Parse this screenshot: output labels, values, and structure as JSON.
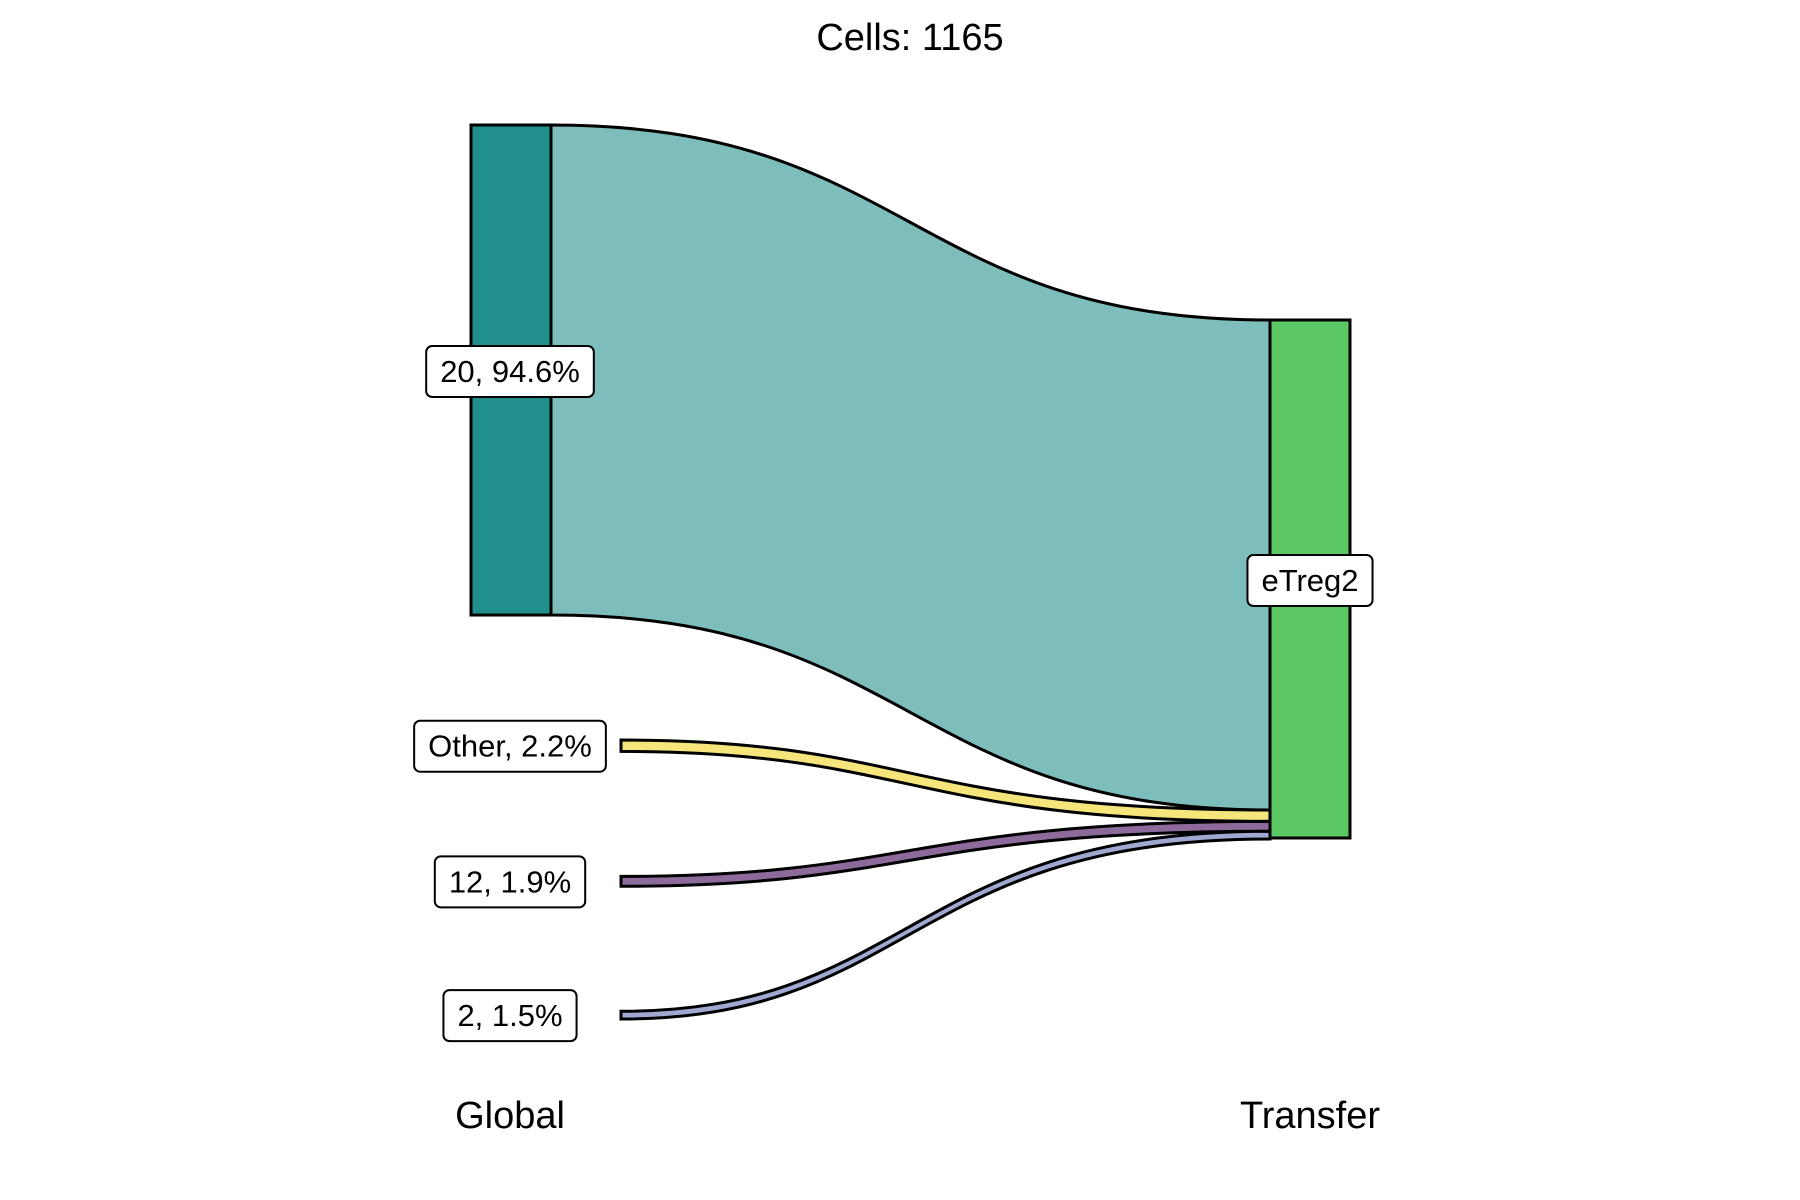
{
  "chart_data": {
    "type": "alluvial",
    "title": "Cells:  1165",
    "axes": [
      "Global",
      "Transfer"
    ],
    "strata_left": [
      {
        "name": "20",
        "label": "20, 94.6%",
        "percent": 94.6,
        "color": "#21908C",
        "flow_color": "#7DBDBB"
      },
      {
        "name": "Other",
        "label": "Other, 2.2%",
        "percent": 2.2,
        "color": "#FDE725",
        "flow_color": "#F5E57A"
      },
      {
        "name": "12",
        "label": "12, 1.9%",
        "percent": 1.9,
        "color": "#7E4E90",
        "flow_color": "#8E6A9C"
      },
      {
        "name": "2",
        "label": "2, 1.5%",
        "percent": 1.5,
        "color": "#4A5AA0",
        "flow_color": "#9FA8D0"
      }
    ],
    "strata_right": [
      {
        "name": "eTreg2",
        "label": "eTreg2",
        "percent": 100,
        "color": "#5CC863"
      }
    ]
  }
}
